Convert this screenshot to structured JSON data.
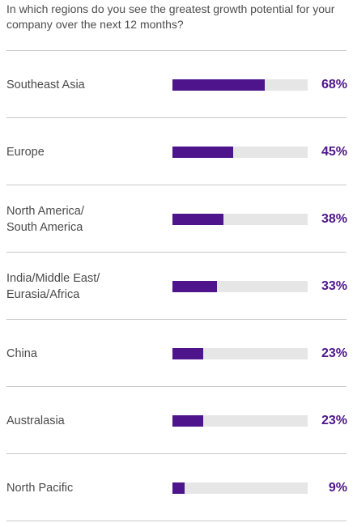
{
  "question": "In which regions do you see the greatest growth potential for your company over the next 12 months?",
  "colors": {
    "accent": "#4e148c",
    "track": "#e6e6e6",
    "divider": "#c8c8c8",
    "text": "#4a4a4a"
  },
  "chart_data": {
    "type": "bar",
    "orientation": "horizontal",
    "title": "In which regions do you see the greatest growth potential for your company over the next 12 months?",
    "categories": [
      "Southeast Asia",
      "Europe",
      "North America/ South America",
      "India/Middle East/ Eurasia/Africa",
      "China",
      "Australasia",
      "North Pacific"
    ],
    "values": [
      68,
      45,
      38,
      33,
      23,
      23,
      9
    ],
    "value_labels": [
      "68%",
      "45%",
      "38%",
      "33%",
      "23%",
      "23%",
      "9%"
    ],
    "xlim": [
      0,
      100
    ],
    "unit": "%",
    "grid": false,
    "legend": "none"
  }
}
